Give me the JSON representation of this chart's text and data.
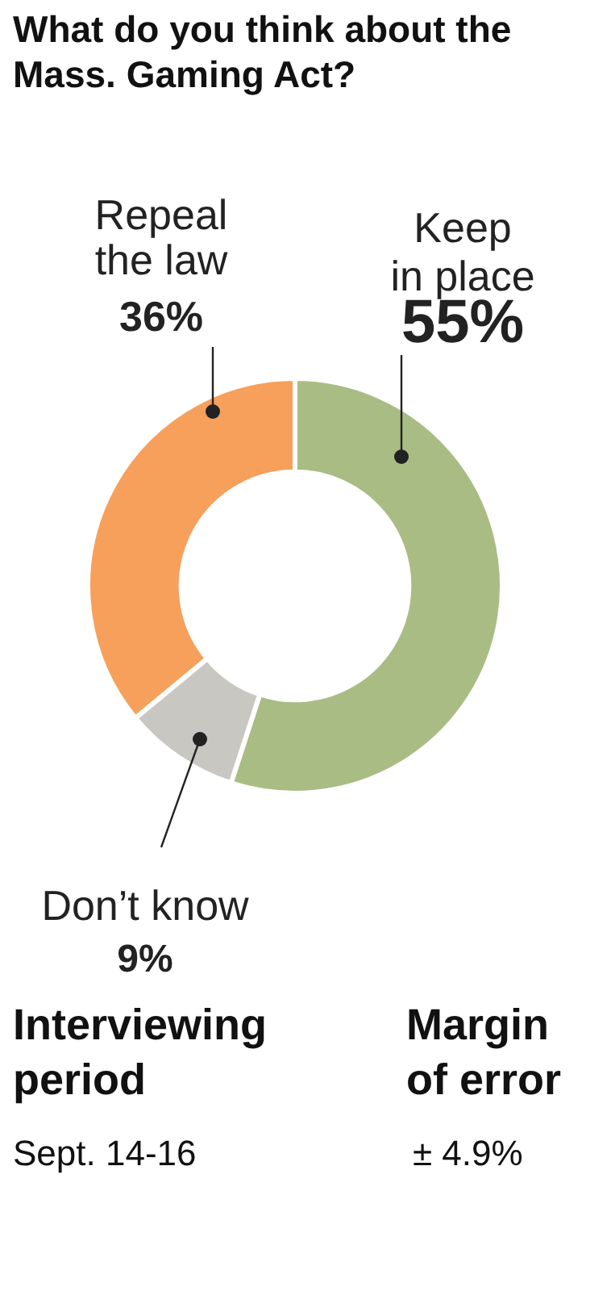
{
  "chart_data": {
    "type": "donut",
    "title": "What do you think about the Mass. Gaming Act?",
    "categories": [
      "Keep in place",
      "Don’t know",
      "Repeal the law"
    ],
    "values": [
      55,
      9,
      36
    ],
    "colors": [
      "#a9bc84",
      "#c9c7c1",
      "#f6a05b"
    ],
    "value_labels": [
      "55%",
      "9%",
      "36%"
    ],
    "legend": false,
    "annotations": [
      "Interviewing period",
      "Sept. 14-16",
      "Margin of error",
      "± 4.9%"
    ]
  }
}
